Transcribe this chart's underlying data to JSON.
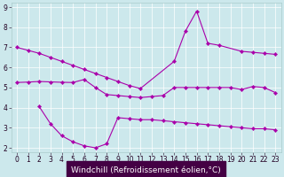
{
  "background_color": "#cce8ec",
  "line_color": "#aa00aa",
  "xlabel": "Windchill (Refroidissement éolien,°C)",
  "xlabel_color": "#ffffff",
  "xlabel_bg": "#440044",
  "tick_color": "#220022",
  "tick_fontsize": 5.5,
  "xlabel_fontsize": 6.5,
  "xlim": [
    -0.5,
    23.5
  ],
  "ylim": [
    1.8,
    9.2
  ],
  "yticks": [
    2,
    3,
    4,
    5,
    6,
    7,
    8,
    9
  ],
  "xticks": [
    0,
    1,
    2,
    3,
    4,
    5,
    6,
    7,
    8,
    9,
    10,
    11,
    12,
    13,
    14,
    15,
    16,
    17,
    18,
    19,
    20,
    21,
    22,
    23
  ],
  "curve_top_x": [
    0,
    1,
    2,
    3,
    4,
    5,
    6,
    7,
    8,
    9,
    10,
    11,
    14,
    15,
    16,
    17,
    18,
    20,
    21,
    22,
    23
  ],
  "curve_top_y": [
    7.0,
    6.85,
    6.7,
    6.5,
    6.3,
    6.1,
    5.9,
    5.7,
    5.5,
    5.3,
    5.1,
    4.95,
    6.3,
    7.8,
    8.8,
    7.2,
    7.1,
    6.8,
    6.75,
    6.7,
    6.65
  ],
  "curve_mid_x": [
    0,
    1,
    2,
    3,
    4,
    5,
    6,
    7,
    8,
    9,
    10,
    11,
    12,
    13,
    14,
    15,
    16,
    17,
    18,
    19,
    20,
    21,
    22,
    23
  ],
  "curve_mid_y": [
    5.25,
    5.27,
    5.3,
    5.28,
    5.26,
    5.25,
    5.4,
    5.0,
    4.65,
    4.6,
    4.55,
    4.5,
    4.55,
    4.6,
    5.0,
    5.0,
    5.0,
    5.0,
    5.0,
    5.0,
    4.9,
    5.05,
    5.0,
    4.75
  ],
  "curve_bot_x": [
    2,
    3,
    4,
    5,
    6,
    7,
    8,
    9,
    10,
    11,
    12,
    13,
    14,
    15,
    16,
    17,
    18,
    19,
    20,
    21,
    22,
    23
  ],
  "curve_bot_y": [
    4.05,
    3.2,
    2.6,
    2.3,
    2.1,
    2.0,
    2.2,
    3.5,
    3.45,
    3.4,
    3.4,
    3.35,
    3.3,
    3.25,
    3.2,
    3.15,
    3.1,
    3.05,
    3.0,
    2.95,
    2.95,
    2.9
  ]
}
